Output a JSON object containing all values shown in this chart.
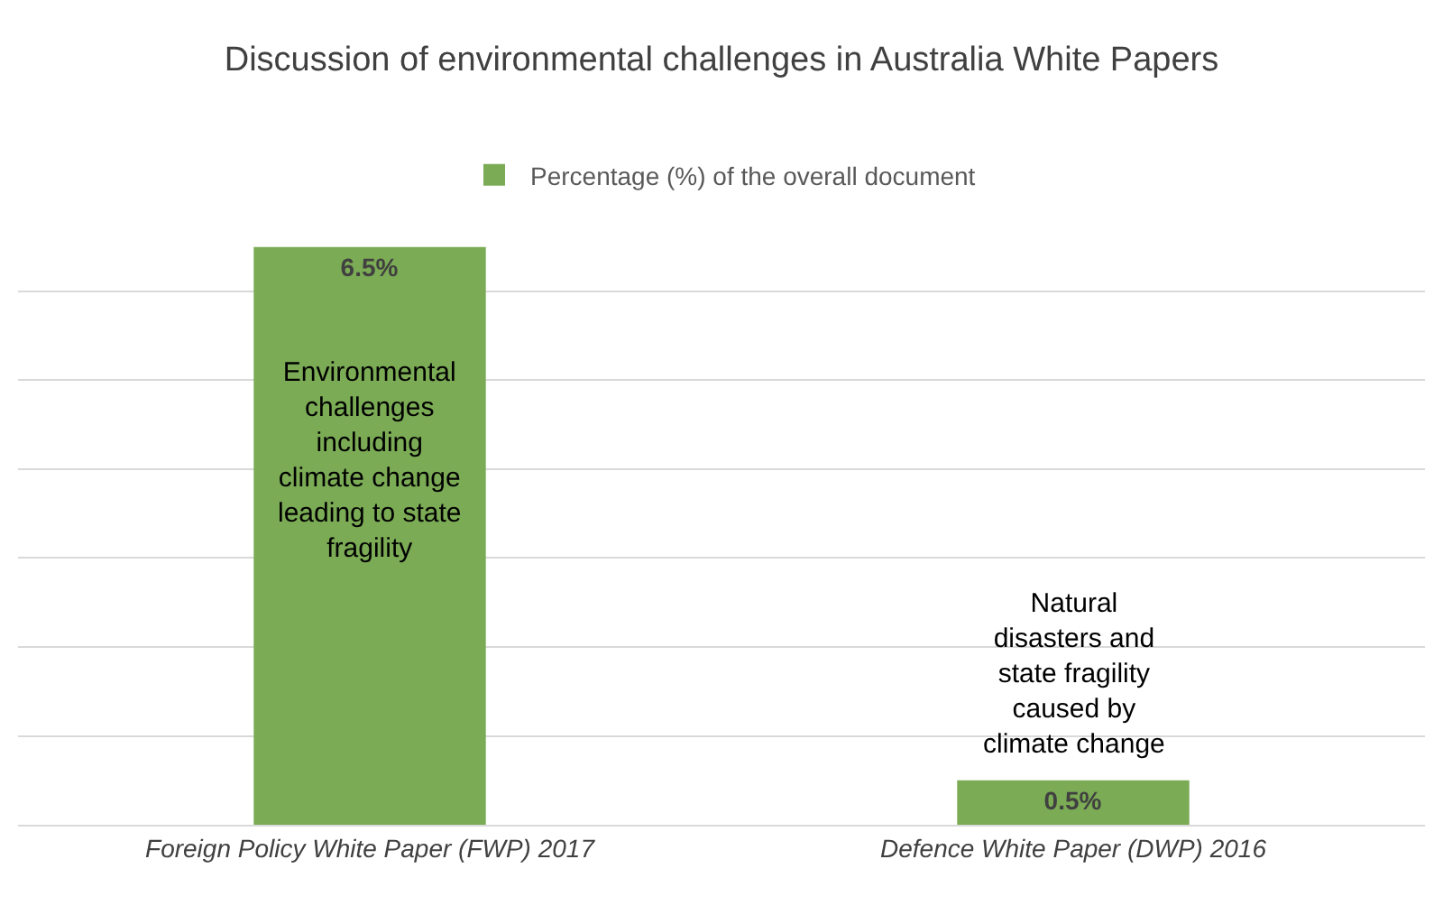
{
  "chart_data": {
    "type": "bar",
    "title": "Discussion of environmental challenges in Australia White Papers",
    "categories": [
      "Foreign Policy White Paper (FWP) 2017",
      "Defence White Paper (DWP) 2016"
    ],
    "series": [
      {
        "name": "Percentage (%) of the overall document",
        "color": "#7bab55",
        "values": [
          6.5,
          0.5
        ],
        "value_labels": [
          "6.5%",
          "0.5%"
        ]
      }
    ],
    "tick_labels": "x",
    "grid": "y",
    "legend": "top",
    "annotations": [
      "Environmental challenges including climate change leading to state fragility",
      "Natural disasters and state fragility caused by climate change"
    ]
  }
}
